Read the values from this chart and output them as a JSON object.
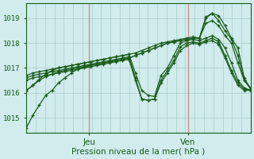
{
  "bg_color": "#d0ecec",
  "line_color": "#1a5c1a",
  "grid_color": "#aacccc",
  "vline_color": "#cc8888",
  "xlabel": "Pression niveau de la mer( hPa )",
  "ytick_values": [
    1015,
    1016,
    1017,
    1018,
    1019
  ],
  "ylim": [
    1014.4,
    1019.6
  ],
  "xlim": [
    0,
    100
  ],
  "jeu_x": 28,
  "ven_x": 72,
  "series": [
    [
      1014.6,
      1015.1,
      1015.5,
      1015.9,
      1016.1,
      1016.4,
      1016.6,
      1016.8,
      1016.95,
      1017.05,
      1017.1,
      1017.15,
      1017.2,
      1017.25,
      1017.3,
      1017.35,
      1017.4,
      1017.5,
      1017.6,
      1017.7,
      1017.8,
      1017.9,
      1018.0,
      1018.05,
      1018.1,
      1018.15,
      1018.2,
      1018.2,
      1019.05,
      1019.2,
      1019.1,
      1018.7,
      1018.2,
      1017.8,
      1016.6,
      1016.15
    ],
    [
      1016.1,
      1016.3,
      1016.55,
      1016.75,
      1016.9,
      1017.0,
      1017.05,
      1017.1,
      1017.15,
      1017.2,
      1017.25,
      1017.3,
      1017.35,
      1017.4,
      1017.45,
      1017.5,
      1017.55,
      1017.6,
      1017.7,
      1017.8,
      1017.9,
      1018.0,
      1018.05,
      1018.1,
      1018.15,
      1018.2,
      1018.25,
      1018.2,
      1019.0,
      1019.2,
      1018.9,
      1018.5,
      1018.15,
      1017.5,
      1016.5,
      1016.2
    ],
    [
      1016.1,
      1016.3,
      1016.5,
      1016.65,
      1016.75,
      1016.85,
      1016.9,
      1016.95,
      1017.0,
      1017.05,
      1017.1,
      1017.15,
      1017.2,
      1017.25,
      1017.3,
      1017.35,
      1017.4,
      1017.5,
      1017.6,
      1017.7,
      1017.8,
      1017.9,
      1018.0,
      1018.05,
      1018.1,
      1018.15,
      1018.2,
      1018.2,
      1018.8,
      1018.9,
      1018.7,
      1018.3,
      1018.0,
      1017.2,
      1016.5,
      1016.15
    ],
    [
      1016.7,
      1016.8,
      1016.85,
      1016.9,
      1016.95,
      1017.0,
      1017.05,
      1017.1,
      1017.15,
      1017.2,
      1017.25,
      1017.3,
      1017.35,
      1017.4,
      1017.45,
      1017.5,
      1017.55,
      1016.8,
      1016.1,
      1015.9,
      1015.85,
      1016.7,
      1017.0,
      1017.5,
      1018.0,
      1018.1,
      1018.15,
      1018.1,
      1018.2,
      1018.3,
      1018.15,
      1017.8,
      1017.2,
      1016.5,
      1016.2,
      1016.1
    ],
    [
      1016.6,
      1016.7,
      1016.75,
      1016.8,
      1016.85,
      1016.9,
      1016.95,
      1017.0,
      1017.05,
      1017.1,
      1017.15,
      1017.2,
      1017.25,
      1017.3,
      1017.35,
      1017.4,
      1017.45,
      1016.6,
      1015.75,
      1015.7,
      1015.75,
      1016.5,
      1016.9,
      1017.3,
      1017.85,
      1018.0,
      1018.05,
      1018.0,
      1018.1,
      1018.2,
      1018.05,
      1017.5,
      1016.9,
      1016.4,
      1016.15,
      1016.1
    ],
    [
      1016.5,
      1016.6,
      1016.65,
      1016.7,
      1016.75,
      1016.8,
      1016.85,
      1016.9,
      1016.95,
      1017.0,
      1017.05,
      1017.1,
      1017.15,
      1017.2,
      1017.25,
      1017.3,
      1017.35,
      1016.5,
      1015.75,
      1015.7,
      1015.75,
      1016.4,
      1016.8,
      1017.2,
      1017.7,
      1017.9,
      1018.0,
      1017.95,
      1018.05,
      1018.1,
      1017.95,
      1017.4,
      1016.8,
      1016.3,
      1016.1,
      1016.1
    ]
  ]
}
